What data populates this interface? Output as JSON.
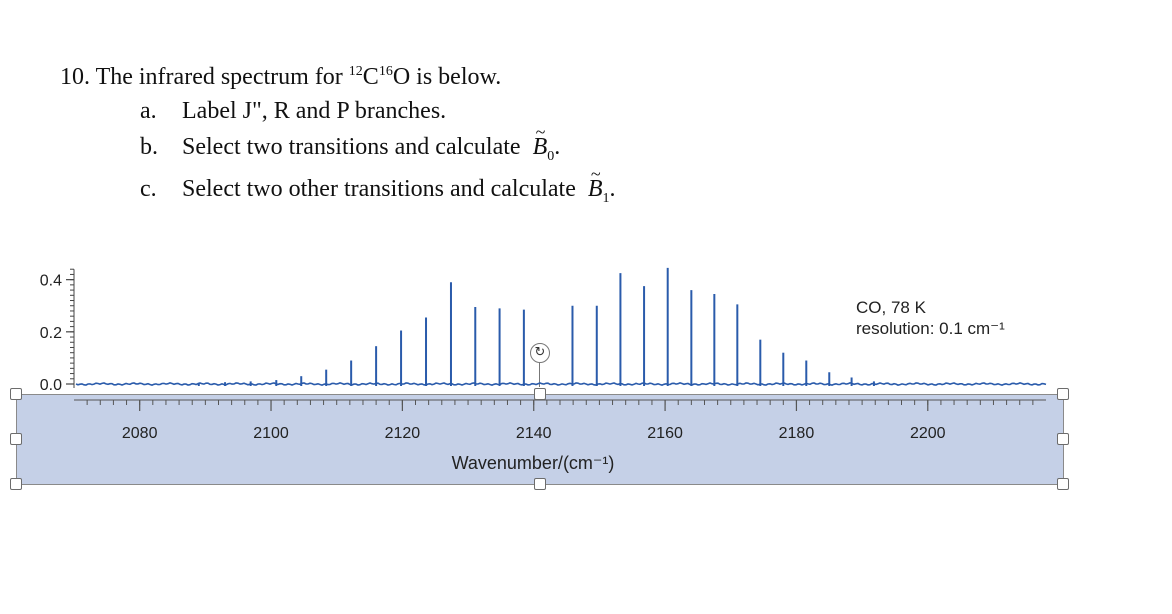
{
  "question": {
    "number": "10.",
    "title_before": "The infrared spectrum for ",
    "iso1": "12",
    "el1": "C",
    "iso2": "16",
    "el2": "O",
    "title_after": " is below.",
    "items": [
      {
        "letter": "a.",
        "text": "Label J\", R and P branches."
      },
      {
        "letter": "b.",
        "text": "Select two transitions and calculate",
        "symbol": "B",
        "subscript": "0",
        "tail": "."
      },
      {
        "letter": "c.",
        "text": "Select two other transitions and calculate",
        "symbol": "B",
        "subscript": "1",
        "tail": "."
      }
    ]
  },
  "chart_data": {
    "type": "line",
    "xlabel": "Wavenumber/(cm⁻¹)",
    "ylabel": "",
    "xlim": [
      2070,
      2218
    ],
    "ylim": [
      -0.02,
      0.46
    ],
    "x_ticks": [
      2080,
      2100,
      2120,
      2140,
      2160,
      2180,
      2200
    ],
    "x_tick_labels": [
      "2080",
      "2100",
      "2120",
      "2140",
      "2160",
      "2180",
      "2200"
    ],
    "y_ticks": [
      0.0,
      0.2,
      0.4
    ],
    "y_tick_labels": [
      "0.0",
      "0.2",
      "0.4"
    ],
    "annotation_line1": "CO, 78 K",
    "annotation_line2": "resolution: 0.1 cm⁻¹",
    "line_color": "#2a5bab",
    "peaks": [
      {
        "x": 2089.0,
        "y": 0.005
      },
      {
        "x": 2093.0,
        "y": 0.007
      },
      {
        "x": 2096.9,
        "y": 0.01
      },
      {
        "x": 2100.8,
        "y": 0.015
      },
      {
        "x": 2104.6,
        "y": 0.03
      },
      {
        "x": 2108.4,
        "y": 0.055
      },
      {
        "x": 2112.2,
        "y": 0.09
      },
      {
        "x": 2116.0,
        "y": 0.145
      },
      {
        "x": 2119.8,
        "y": 0.205
      },
      {
        "x": 2123.6,
        "y": 0.255
      },
      {
        "x": 2127.4,
        "y": 0.39
      },
      {
        "x": 2131.1,
        "y": 0.295
      },
      {
        "x": 2134.8,
        "y": 0.29
      },
      {
        "x": 2138.5,
        "y": 0.285
      },
      {
        "x": 2145.9,
        "y": 0.3
      },
      {
        "x": 2149.6,
        "y": 0.3
      },
      {
        "x": 2153.2,
        "y": 0.425
      },
      {
        "x": 2156.8,
        "y": 0.375
      },
      {
        "x": 2160.4,
        "y": 0.445
      },
      {
        "x": 2164.0,
        "y": 0.36
      },
      {
        "x": 2167.5,
        "y": 0.345
      },
      {
        "x": 2171.0,
        "y": 0.305
      },
      {
        "x": 2174.5,
        "y": 0.17
      },
      {
        "x": 2178.0,
        "y": 0.12
      },
      {
        "x": 2181.5,
        "y": 0.09
      },
      {
        "x": 2185.0,
        "y": 0.045
      },
      {
        "x": 2188.4,
        "y": 0.025
      },
      {
        "x": 2191.8,
        "y": 0.01
      }
    ]
  }
}
